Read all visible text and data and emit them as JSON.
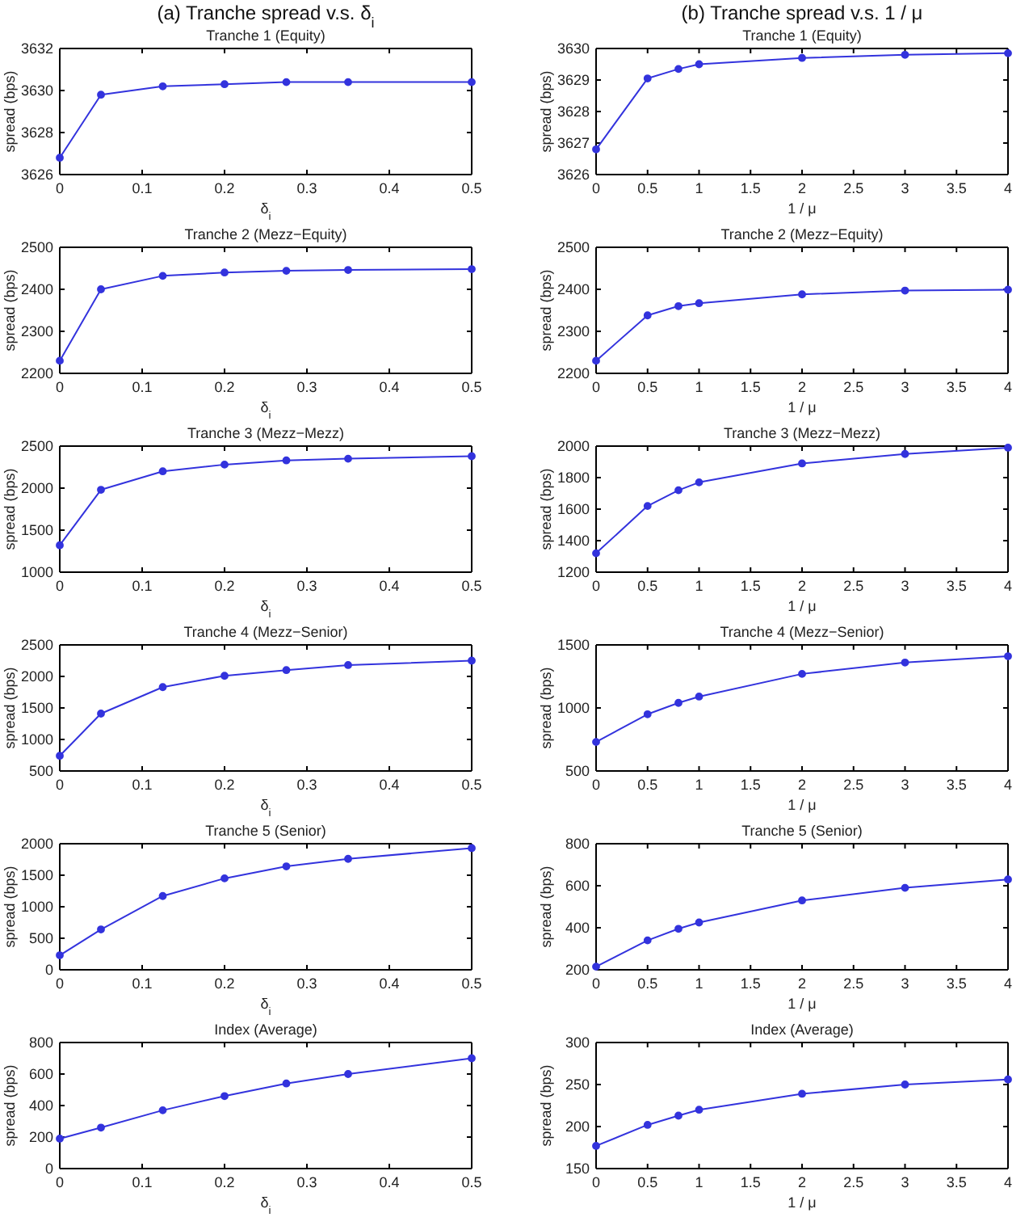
{
  "chart_data": [
    {
      "type": "line",
      "title": "Tranche 1 (Equity)",
      "annotations": [
        "(a) Tranche spread v.s. δ$_{i}$"
      ],
      "xlabel": "δ$_{i}$",
      "ylabel": "spread (bps)",
      "x": [
        0,
        0.05,
        0.125,
        0.2,
        0.275,
        0.35,
        0.5
      ],
      "xlim": [
        0,
        0.5
      ],
      "xticks": [
        0,
        0.1,
        0.2,
        0.3,
        0.4,
        0.5
      ],
      "ylim": [
        3626,
        3632
      ],
      "yticks": [
        3626,
        3628,
        3630,
        3632
      ],
      "marker": "circle",
      "series": [
        {
          "color": "#3333dd",
          "values": [
            3626.8,
            3629.8,
            3630.2,
            3630.3,
            3630.4,
            3630.4,
            3630.4
          ]
        }
      ]
    },
    {
      "type": "line",
      "title": "Tranche 2 (Mezz−Equity)",
      "xlabel": "δ$_{i}$",
      "ylabel": "spread (bps)",
      "x": [
        0,
        0.05,
        0.125,
        0.2,
        0.275,
        0.35,
        0.5
      ],
      "xlim": [
        0,
        0.5
      ],
      "xticks": [
        0,
        0.1,
        0.2,
        0.3,
        0.4,
        0.5
      ],
      "ylim": [
        2200,
        2500
      ],
      "yticks": [
        2200,
        2300,
        2400,
        2500
      ],
      "marker": "circle",
      "series": [
        {
          "color": "#3333dd",
          "values": [
            2230,
            2400,
            2432,
            2440,
            2444,
            2446,
            2448
          ]
        }
      ]
    },
    {
      "type": "line",
      "title": "Tranche 3 (Mezz−Mezz)",
      "xlabel": "δ$_{i}$",
      "ylabel": "spread (bps)",
      "x": [
        0,
        0.05,
        0.125,
        0.2,
        0.275,
        0.35,
        0.5
      ],
      "xlim": [
        0,
        0.5
      ],
      "xticks": [
        0,
        0.1,
        0.2,
        0.3,
        0.4,
        0.5
      ],
      "ylim": [
        1000,
        2500
      ],
      "yticks": [
        1000,
        1500,
        2000,
        2500
      ],
      "marker": "circle",
      "series": [
        {
          "color": "#3333dd",
          "values": [
            1320,
            1980,
            2200,
            2280,
            2330,
            2350,
            2380
          ]
        }
      ]
    },
    {
      "type": "line",
      "title": "Tranche 4 (Mezz−Senior)",
      "xlabel": "δ$_{i}$",
      "ylabel": "spread (bps)",
      "x": [
        0,
        0.05,
        0.125,
        0.2,
        0.275,
        0.35,
        0.5
      ],
      "xlim": [
        0,
        0.5
      ],
      "xticks": [
        0,
        0.1,
        0.2,
        0.3,
        0.4,
        0.5
      ],
      "ylim": [
        500,
        2500
      ],
      "yticks": [
        500,
        1000,
        1500,
        2000,
        2500
      ],
      "marker": "circle",
      "series": [
        {
          "color": "#3333dd",
          "values": [
            740,
            1410,
            1830,
            2010,
            2100,
            2180,
            2250
          ]
        }
      ]
    },
    {
      "type": "line",
      "title": "Tranche 5 (Senior)",
      "xlabel": "δ$_{i}$",
      "ylabel": "spread (bps)",
      "x": [
        0,
        0.05,
        0.125,
        0.2,
        0.275,
        0.35,
        0.5
      ],
      "xlim": [
        0,
        0.5
      ],
      "xticks": [
        0,
        0.1,
        0.2,
        0.3,
        0.4,
        0.5
      ],
      "ylim": [
        0,
        2000
      ],
      "yticks": [
        0,
        500,
        1000,
        1500,
        2000
      ],
      "marker": "circle",
      "series": [
        {
          "color": "#3333dd",
          "values": [
            230,
            640,
            1170,
            1450,
            1640,
            1760,
            1930
          ]
        }
      ]
    },
    {
      "type": "line",
      "title": "Index (Average)",
      "xlabel": "δ$_{i}$",
      "ylabel": "spread (bps)",
      "x": [
        0,
        0.05,
        0.125,
        0.2,
        0.275,
        0.35,
        0.5
      ],
      "xlim": [
        0,
        0.5
      ],
      "xticks": [
        0,
        0.1,
        0.2,
        0.3,
        0.4,
        0.5
      ],
      "ylim": [
        0,
        800
      ],
      "yticks": [
        0,
        200,
        400,
        600,
        800
      ],
      "marker": "circle",
      "series": [
        {
          "color": "#3333dd",
          "values": [
            190,
            260,
            370,
            460,
            540,
            600,
            700
          ]
        }
      ]
    },
    {
      "type": "line",
      "title": "Tranche 1 (Equity)",
      "annotations": [
        "(b) Tranche spread v.s. 1 / μ"
      ],
      "xlabel": "1 / μ",
      "ylabel": "spread (bps)",
      "x": [
        0,
        0.5,
        0.8,
        1,
        2,
        3,
        4
      ],
      "xlim": [
        0,
        4
      ],
      "xticks": [
        0,
        0.5,
        1,
        1.5,
        2,
        2.5,
        3,
        3.5,
        4
      ],
      "ylim": [
        3626,
        3630
      ],
      "yticks": [
        3626,
        3627,
        3628,
        3629,
        3630
      ],
      "marker": "circle",
      "series": [
        {
          "color": "#3333dd",
          "values": [
            3626.8,
            3629.05,
            3629.35,
            3629.5,
            3629.7,
            3629.8,
            3629.85
          ]
        }
      ]
    },
    {
      "type": "line",
      "title": "Tranche 2 (Mezz−Equity)",
      "xlabel": "1 / μ",
      "ylabel": "spread (bps)",
      "x": [
        0,
        0.5,
        0.8,
        1,
        2,
        3,
        4
      ],
      "xlim": [
        0,
        4
      ],
      "xticks": [
        0,
        0.5,
        1,
        1.5,
        2,
        2.5,
        3,
        3.5,
        4
      ],
      "ylim": [
        2200,
        2500
      ],
      "yticks": [
        2200,
        2300,
        2400,
        2500
      ],
      "marker": "circle",
      "series": [
        {
          "color": "#3333dd",
          "values": [
            2230,
            2338,
            2360,
            2367,
            2388,
            2397,
            2399
          ]
        }
      ]
    },
    {
      "type": "line",
      "title": "Tranche 3 (Mezz−Mezz)",
      "xlabel": "1 / μ",
      "ylabel": "spread (bps)",
      "x": [
        0,
        0.5,
        0.8,
        1,
        2,
        3,
        4
      ],
      "xlim": [
        0,
        4
      ],
      "xticks": [
        0,
        0.5,
        1,
        1.5,
        2,
        2.5,
        3,
        3.5,
        4
      ],
      "ylim": [
        1200,
        2000
      ],
      "yticks": [
        1200,
        1400,
        1600,
        1800,
        2000
      ],
      "marker": "circle",
      "series": [
        {
          "color": "#3333dd",
          "values": [
            1320,
            1620,
            1720,
            1770,
            1890,
            1950,
            1990
          ]
        }
      ]
    },
    {
      "type": "line",
      "title": "Tranche 4 (Mezz−Senior)",
      "xlabel": "1 / μ",
      "ylabel": "spread (bps)",
      "x": [
        0,
        0.5,
        0.8,
        1,
        2,
        3,
        4
      ],
      "xlim": [
        0,
        4
      ],
      "xticks": [
        0,
        0.5,
        1,
        1.5,
        2,
        2.5,
        3,
        3.5,
        4
      ],
      "ylim": [
        500,
        1500
      ],
      "yticks": [
        500,
        1000,
        1500
      ],
      "marker": "circle",
      "series": [
        {
          "color": "#3333dd",
          "values": [
            730,
            950,
            1040,
            1090,
            1270,
            1360,
            1410
          ]
        }
      ]
    },
    {
      "type": "line",
      "title": "Tranche 5 (Senior)",
      "xlabel": "1 / μ",
      "ylabel": "spread (bps)",
      "x": [
        0,
        0.5,
        0.8,
        1,
        2,
        3,
        4
      ],
      "xlim": [
        0,
        4
      ],
      "xticks": [
        0,
        0.5,
        1,
        1.5,
        2,
        2.5,
        3,
        3.5,
        4
      ],
      "ylim": [
        200,
        800
      ],
      "yticks": [
        200,
        400,
        600,
        800
      ],
      "marker": "circle",
      "series": [
        {
          "color": "#3333dd",
          "values": [
            215,
            340,
            395,
            425,
            530,
            590,
            630
          ]
        }
      ]
    },
    {
      "type": "line",
      "title": "Index (Average)",
      "xlabel": "1 / μ",
      "ylabel": "spread (bps)",
      "x": [
        0,
        0.5,
        0.8,
        1,
        2,
        3,
        4
      ],
      "xlim": [
        0,
        4
      ],
      "xticks": [
        0,
        0.5,
        1,
        1.5,
        2,
        2.5,
        3,
        3.5,
        4
      ],
      "ylim": [
        150,
        300
      ],
      "yticks": [
        150,
        200,
        250,
        300
      ],
      "marker": "circle",
      "series": [
        {
          "color": "#3333dd",
          "values": [
            177,
            202,
            213,
            220,
            239,
            250,
            256
          ]
        }
      ]
    }
  ]
}
